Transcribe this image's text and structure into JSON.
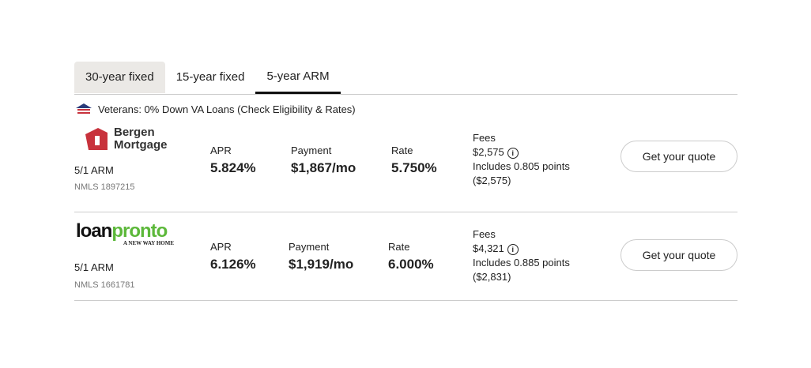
{
  "tabs": [
    "30-year fixed",
    "15-year fixed",
    "5-year ARM"
  ],
  "active_tab": "5-year ARM",
  "veterans_link": "Veterans: 0% Down VA Loans (Check Eligibility & Rates)",
  "labels": {
    "apr": "APR",
    "payment": "Payment",
    "rate": "Rate",
    "fees": "Fees",
    "button": "Get your quote"
  },
  "offers": [
    {
      "lender": "Bergen Mortgage",
      "logo_line1": "Bergen",
      "logo_line2": "Mortgage",
      "product": "5/1 ARM",
      "nmls": "NMLS 1897215",
      "apr": "5.824%",
      "payment": "$1,867/mo",
      "rate": "5.750%",
      "fees": "$2,575",
      "points": "Includes 0.805 points",
      "points_cost": "($2,575)"
    },
    {
      "lender": "loanpronto",
      "logo_line1": "loan",
      "logo_line2": "pronto",
      "tagline": "A NEW WAY HOME",
      "product": "5/1 ARM",
      "nmls": "NMLS 1661781",
      "apr": "6.126%",
      "payment": "$1,919/mo",
      "rate": "6.000%",
      "fees": "$4,321",
      "points": "Includes 0.885 points",
      "points_cost": "($2,831)"
    }
  ],
  "colors": {
    "bergen_red": "#c8323c",
    "pronto_green": "#5cb83a"
  }
}
